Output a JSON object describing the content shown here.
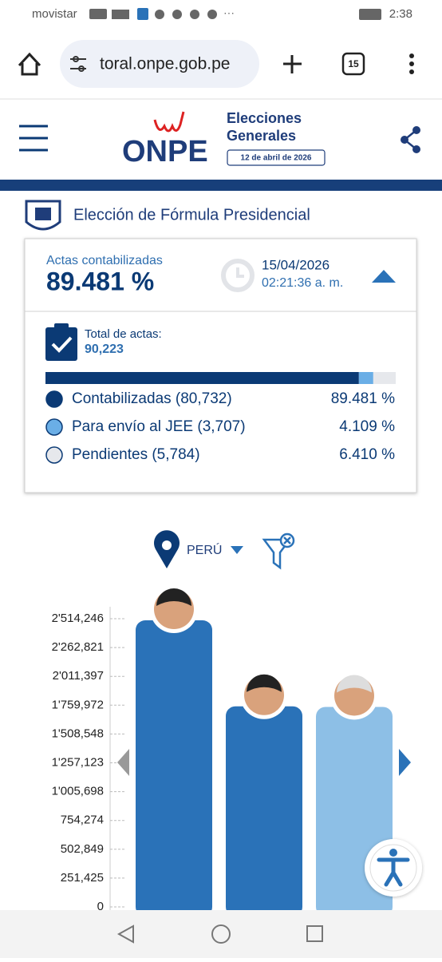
{
  "status_bar": {
    "carrier": "movistar",
    "time": "2:38"
  },
  "browser": {
    "url": "toral.onpe.gob.pe",
    "tabs": "15"
  },
  "header": {
    "logo": "ONPE",
    "title_line1": "Elecciones",
    "title_line2": "Generales",
    "date": "12 de abril de 2026"
  },
  "section_title": "Elección de Fórmula Presidencial",
  "summary": {
    "label": "Actas contabilizadas",
    "percent": "89.481 %",
    "date": "15/04/2026",
    "time": "02:21:36 a. m.",
    "total_label": "Total de actas:",
    "total": "90,223",
    "rows": [
      {
        "label": "Contabilizadas (80,732)",
        "percent": 89.481,
        "percent_label": "89.481 %",
        "color": "#0b3a75"
      },
      {
        "label": "Para envío al JEE (3,707)",
        "percent": 4.109,
        "percent_label": "4.109 %",
        "color": "#6aaee6"
      },
      {
        "label": "Pendientes (5,784)",
        "percent": 6.41,
        "percent_label": "6.410 %",
        "color": "#e6e8ec"
      }
    ]
  },
  "location": "PERÚ",
  "chart": {
    "type": "bar",
    "values": [
      2500000,
      1750000,
      1745000
    ],
    "colors": [
      "#2a72b8",
      "#2a72b8",
      "#8dbfe6"
    ],
    "ylim": [
      0,
      2514246
    ],
    "yticks": [
      0,
      {
        "value": 251425,
        "label": "251,425"
      },
      {
        "value": 502849,
        "label": "502,849"
      },
      {
        "value": 754274,
        "label": "754,274"
      },
      {
        "value": 1005698,
        "label": "1'005,698"
      },
      {
        "value": 1257123,
        "label": "1'257,123"
      },
      {
        "value": 1508548,
        "label": "1'508,548"
      },
      {
        "value": 1759972,
        "label": "1'759,972"
      },
      {
        "value": 2011397,
        "label": "2'011,397"
      },
      {
        "value": 2262821,
        "label": "2'262,821"
      },
      {
        "value": 2514246,
        "label": "2'514,246"
      }
    ]
  }
}
